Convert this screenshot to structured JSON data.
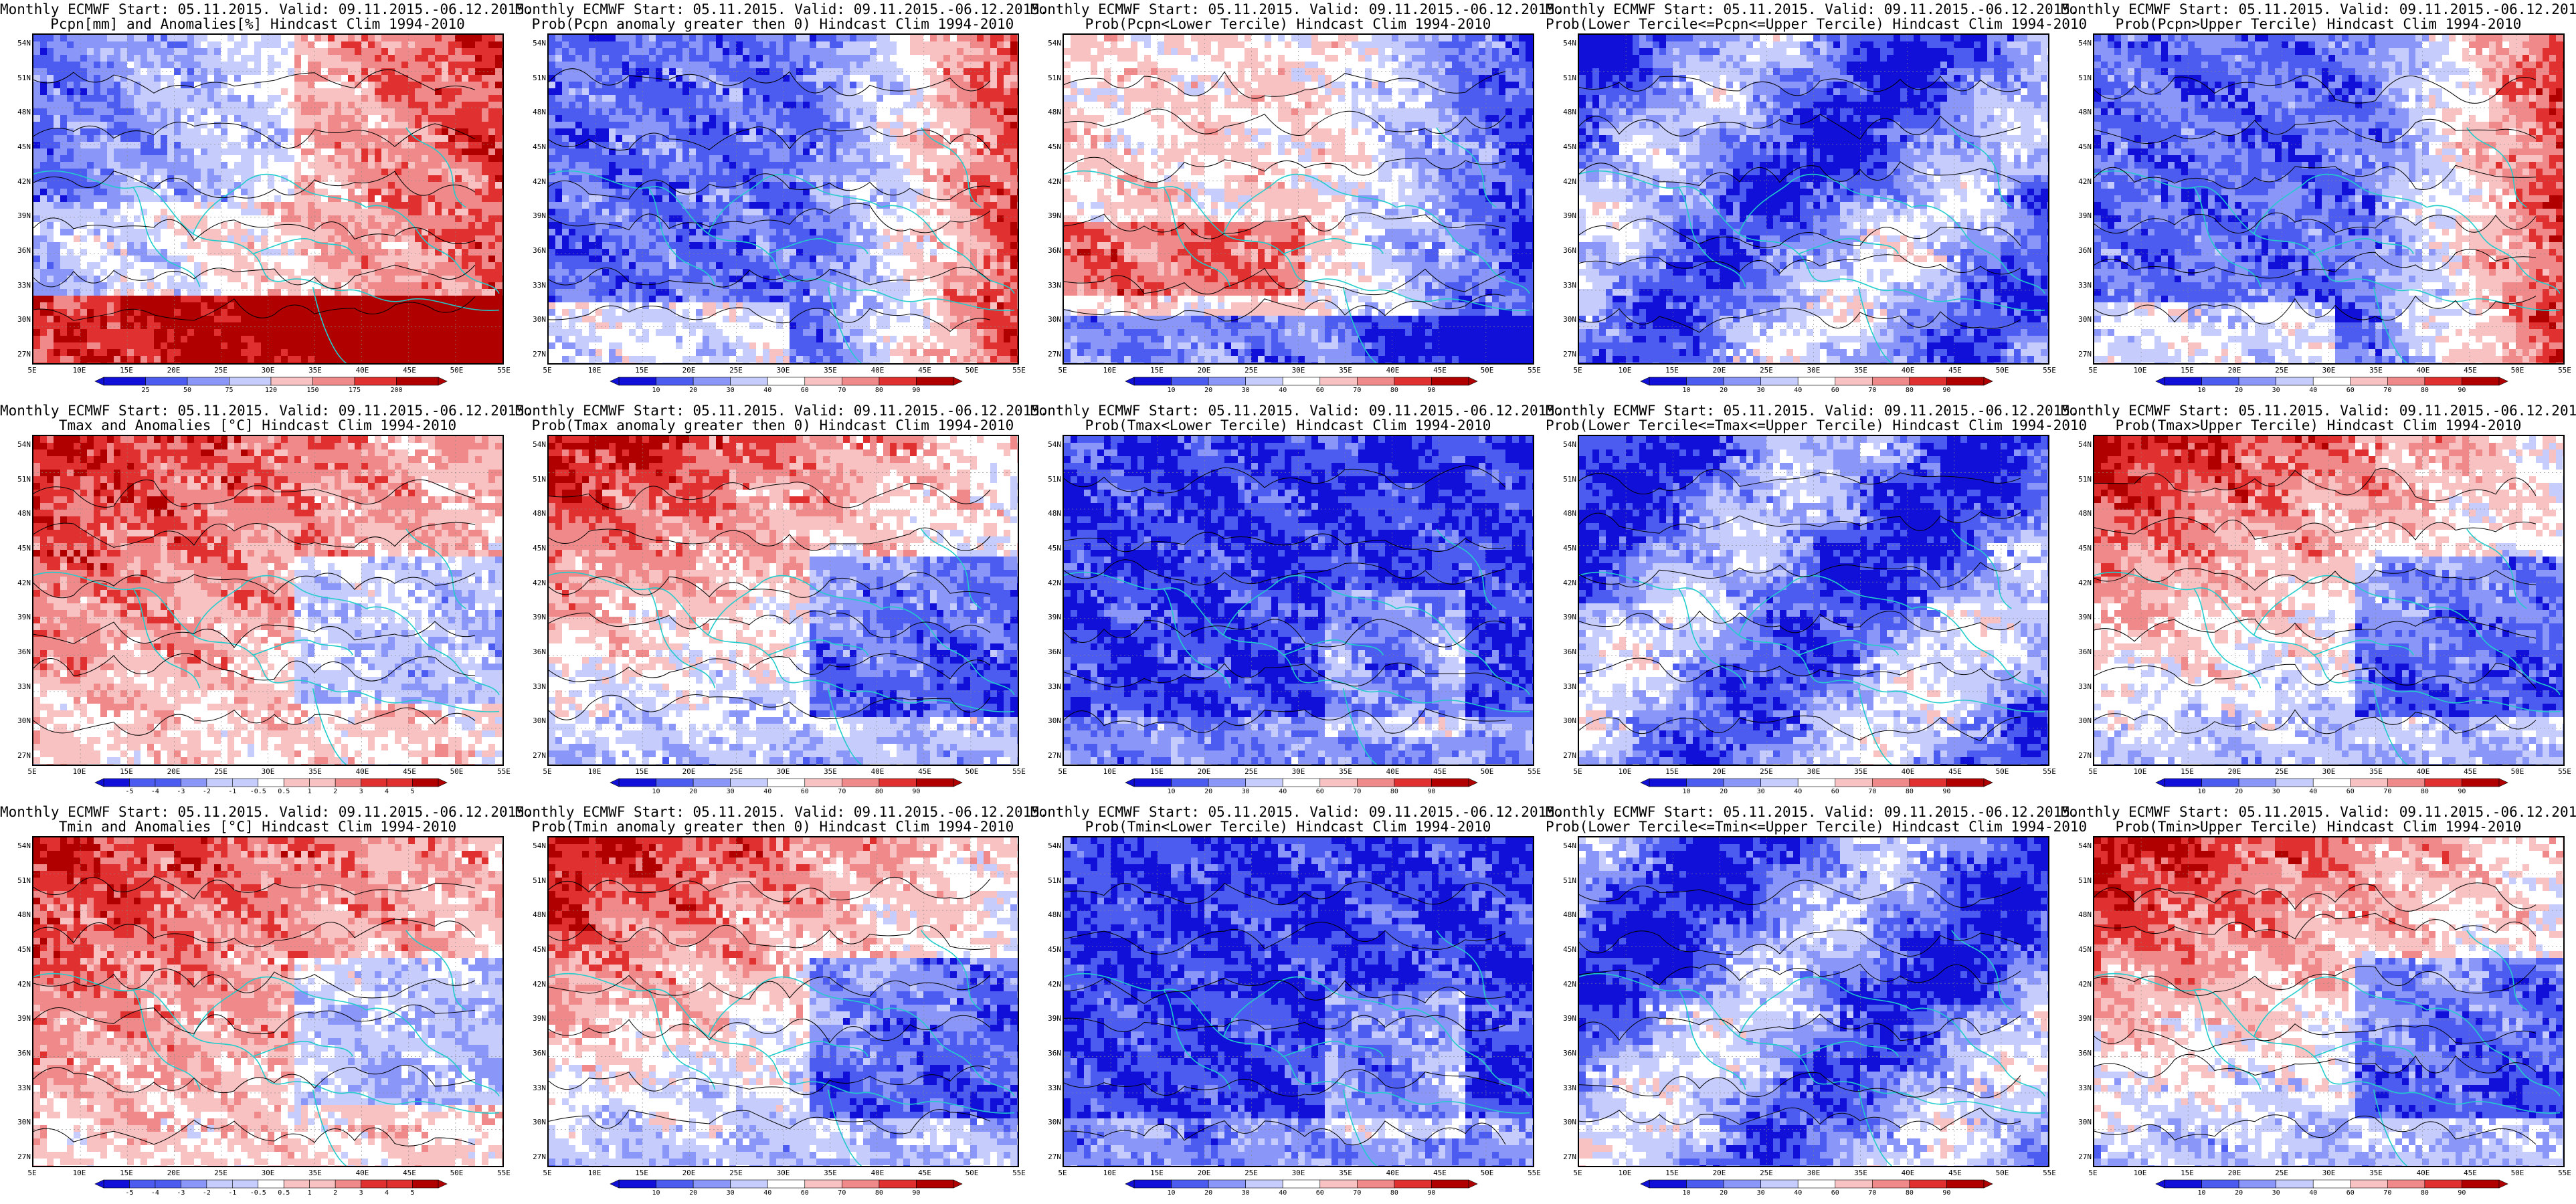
{
  "figure": {
    "palette": {
      "blue_dark": "#1010d8",
      "blue": "#4c5cf0",
      "blue_mid": "#8a96f8",
      "blue_light": "#c6ccfb",
      "white": "#ffffff",
      "red_light": "#f8c2c2",
      "red_mid": "#f08a8a",
      "red": "#e03030",
      "red_dark": "#b00000",
      "coast": "#22cccc",
      "contour": "#000000"
    },
    "lat_labels": [
      "54N",
      "51N",
      "48N",
      "45N",
      "42N",
      "39N",
      "36N",
      "33N",
      "30N",
      "27N"
    ],
    "lon_labels": [
      "5E",
      "10E",
      "15E",
      "20E",
      "25E",
      "30E",
      "35E",
      "40E",
      "45E",
      "50E",
      "55E"
    ],
    "panels": [
      {
        "line1": "Monthly ECMWF Start: 05.11.2015. Valid: 09.11.2015.-06.12.2015.",
        "line2": "Pcpn[mm] and Anomalies[%] Hindcast Clim 1994-2010",
        "colorbar": [
          "25",
          "50",
          "75",
          "120",
          "150",
          "175",
          "200"
        ],
        "pattern": "pcpn_anom",
        "seed": 1
      },
      {
        "line1": "Monthly ECMWF Start: 05.11.2015. Valid: 09.11.2015.-06.12.2015.",
        "line2": "Prob(Pcpn anomaly greater then 0) Hindcast Clim 1994-2010",
        "colorbar": [
          "10",
          "20",
          "30",
          "40",
          "60",
          "70",
          "80",
          "90"
        ],
        "pattern": "pcpn_pos",
        "seed": 2
      },
      {
        "line1": "Monthly ECMWF Start: 05.11.2015. Valid: 09.11.2015.-06.12.2015.",
        "line2": "Prob(Pcpn<Lower Tercile) Hindcast Clim 1994-2010",
        "colorbar": [
          "10",
          "20",
          "30",
          "40",
          "60",
          "70",
          "80",
          "90"
        ],
        "pattern": "pcpn_low",
        "seed": 3
      },
      {
        "line1": "Monthly ECMWF Start: 05.11.2015. Valid: 09.11.2015.-06.12.2015.",
        "line2": "Prob(Lower Tercile<=Pcpn<=Upper Tercile) Hindcast Clim 1994-2010",
        "colorbar": [
          "10",
          "20",
          "30",
          "40",
          "60",
          "70",
          "80",
          "90"
        ],
        "pattern": "mid_tercile",
        "seed": 4
      },
      {
        "line1": "Monthly ECMWF Start: 05.11.2015. Valid: 09.11.2015.-06.12.2015.",
        "line2": "Prob(Pcpn>Upper Tercile) Hindcast Clim 1994-2010",
        "colorbar": [
          "10",
          "20",
          "30",
          "40",
          "60",
          "70",
          "80",
          "90"
        ],
        "pattern": "pcpn_pos",
        "seed": 5
      },
      {
        "line1": "Monthly ECMWF Start: 05.11.2015. Valid: 09.11.2015.-06.12.2015.",
        "line2": "Tmax and Anomalies [°C] Hindcast Clim 1994-2010",
        "colorbar": [
          "-5",
          "-4",
          "-3",
          "-2",
          "-1",
          "-0.5",
          "0.5",
          "1",
          "2",
          "3",
          "4",
          "5"
        ],
        "pattern": "t_anom",
        "seed": 6
      },
      {
        "line1": "Monthly ECMWF Start: 05.11.2015. Valid: 09.11.2015.-06.12.2015.",
        "line2": "Prob(Tmax anomaly greater then 0) Hindcast Clim 1994-2010",
        "colorbar": [
          "10",
          "20",
          "30",
          "40",
          "60",
          "70",
          "80",
          "90"
        ],
        "pattern": "t_pos",
        "seed": 7
      },
      {
        "line1": "Monthly ECMWF Start: 05.11.2015. Valid: 09.11.2015.-06.12.2015.",
        "line2": "Prob(Tmax<Lower Tercile) Hindcast Clim 1994-2010",
        "colorbar": [
          "10",
          "20",
          "30",
          "40",
          "60",
          "70",
          "80",
          "90"
        ],
        "pattern": "t_low",
        "seed": 8
      },
      {
        "line1": "Monthly ECMWF Start: 05.11.2015. Valid: 09.11.2015.-06.12.2015.",
        "line2": "Prob(Lower Tercile<=Tmax<=Upper Tercile) Hindcast Clim 1994-2010",
        "colorbar": [
          "10",
          "20",
          "30",
          "40",
          "60",
          "70",
          "80",
          "90"
        ],
        "pattern": "mid_tercile",
        "seed": 9
      },
      {
        "line1": "Monthly ECMWF Start: 05.11.2015. Valid: 09.11.2015.-06.12.2015.",
        "line2": "Prob(Tmax>Upper Tercile) Hindcast Clim 1994-2010",
        "colorbar": [
          "10",
          "20",
          "30",
          "40",
          "60",
          "70",
          "80",
          "90"
        ],
        "pattern": "t_pos",
        "seed": 10
      },
      {
        "line1": "Monthly ECMWF Start: 05.11.2015. Valid: 09.11.2015.-06.12.2015.",
        "line2": "Tmin and Anomalies [°C] Hindcast Clim 1994-2010",
        "colorbar": [
          "-5",
          "-4",
          "-3",
          "-2",
          "-1",
          "-0.5",
          "0.5",
          "1",
          "2",
          "3",
          "4",
          "5"
        ],
        "pattern": "t_anom",
        "seed": 11
      },
      {
        "line1": "Monthly ECMWF Start: 05.11.2015. Valid: 09.11.2015.-06.12.2015.",
        "line2": "Prob(Tmin anomaly greater then 0) Hindcast Clim 1994-2010",
        "colorbar": [
          "10",
          "20",
          "30",
          "40",
          "60",
          "70",
          "80",
          "90"
        ],
        "pattern": "t_pos",
        "seed": 12
      },
      {
        "line1": "Monthly ECMWF Start: 05.11.2015. Valid: 09.11.2015.-06.12.2015.",
        "line2": "Prob(Tmin<Lower Tercile) Hindcast Clim 1994-2010",
        "colorbar": [
          "10",
          "20",
          "30",
          "40",
          "60",
          "70",
          "80",
          "90"
        ],
        "pattern": "t_low",
        "seed": 13
      },
      {
        "line1": "Monthly ECMWF Start: 05.11.2015. Valid: 09.11.2015.-06.12.2015.",
        "line2": "Prob(Lower Tercile<=Tmin<=Upper Tercile) Hindcast Clim 1994-2010",
        "colorbar": [
          "10",
          "20",
          "30",
          "40",
          "60",
          "70",
          "80",
          "90"
        ],
        "pattern": "mid_tercile",
        "seed": 14
      },
      {
        "line1": "Monthly ECMWF Start: 05.11.2015. Valid: 09.11.2015.-06.12.2015.",
        "line2": "Prob(Tmin>Upper Tercile) Hindcast Clim 1994-2010",
        "colorbar": [
          "10",
          "20",
          "30",
          "40",
          "60",
          "70",
          "80",
          "90"
        ],
        "pattern": "t_pos",
        "seed": 15
      }
    ]
  }
}
